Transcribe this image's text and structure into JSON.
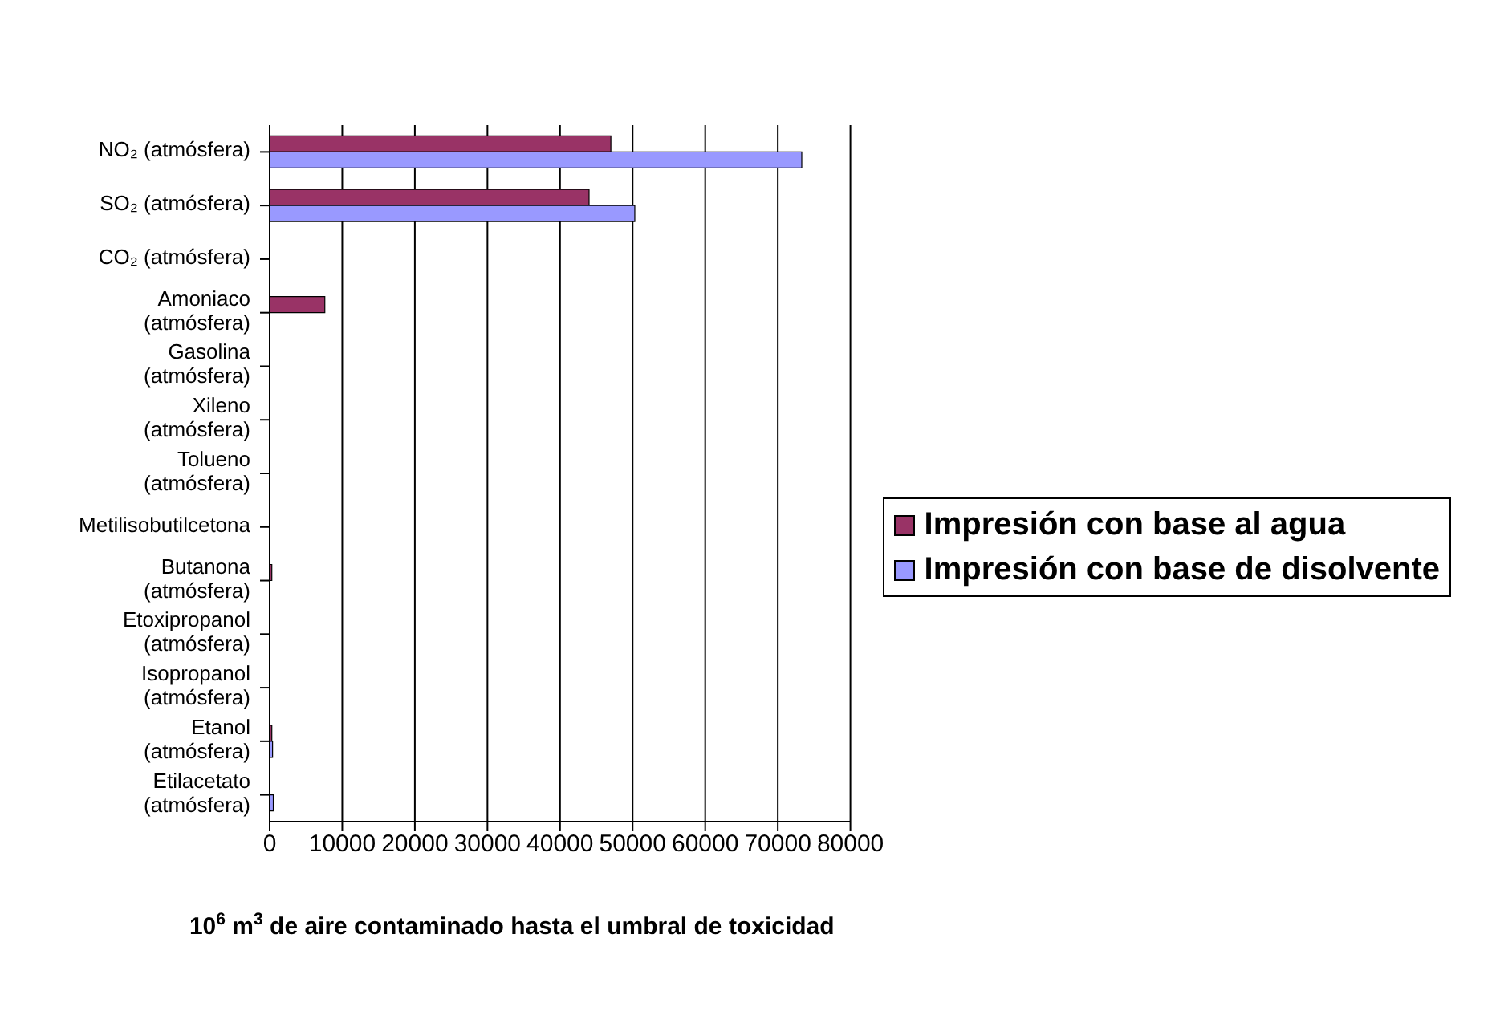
{
  "chart_data": {
    "type": "bar",
    "orientation": "horizontal",
    "categories": [
      "NO₂ (atmósfera)",
      "SO₂ (atmósfera)",
      "CO₂ (atmósfera)",
      "Amoniaco (atmósfera)",
      "Gasolina (atmósfera)",
      "Xileno (atmósfera)",
      "Tolueno (atmósfera)",
      "Metilisobutilcetona",
      "Butanona (atmósfera)",
      "Etoxipropanol (atmósfera)",
      "Isopropanol (atmósfera)",
      "Etanol (atmósfera)",
      "Etilacetato (atmósfera)"
    ],
    "series": [
      {
        "name": "Impresión con base al agua",
        "color": "#993366",
        "values": [
          47000,
          44000,
          0,
          7600,
          0,
          0,
          0,
          0,
          300,
          0,
          0,
          300,
          0
        ]
      },
      {
        "name": "Impresión con base de disolvente",
        "color": "#9999ff",
        "values": [
          73300,
          50300,
          0,
          0,
          0,
          0,
          0,
          0,
          0,
          0,
          0,
          400,
          500
        ]
      }
    ],
    "xlabel": "10$^{6}$ m$^{3}$ de aire contaminado hasta el umbral de toxicidad",
    "xlim": [
      0,
      80000
    ],
    "xticks": [
      0,
      10000,
      20000,
      30000,
      40000,
      50000,
      60000,
      70000,
      80000
    ],
    "grid": "x",
    "legend": "bottom right"
  }
}
